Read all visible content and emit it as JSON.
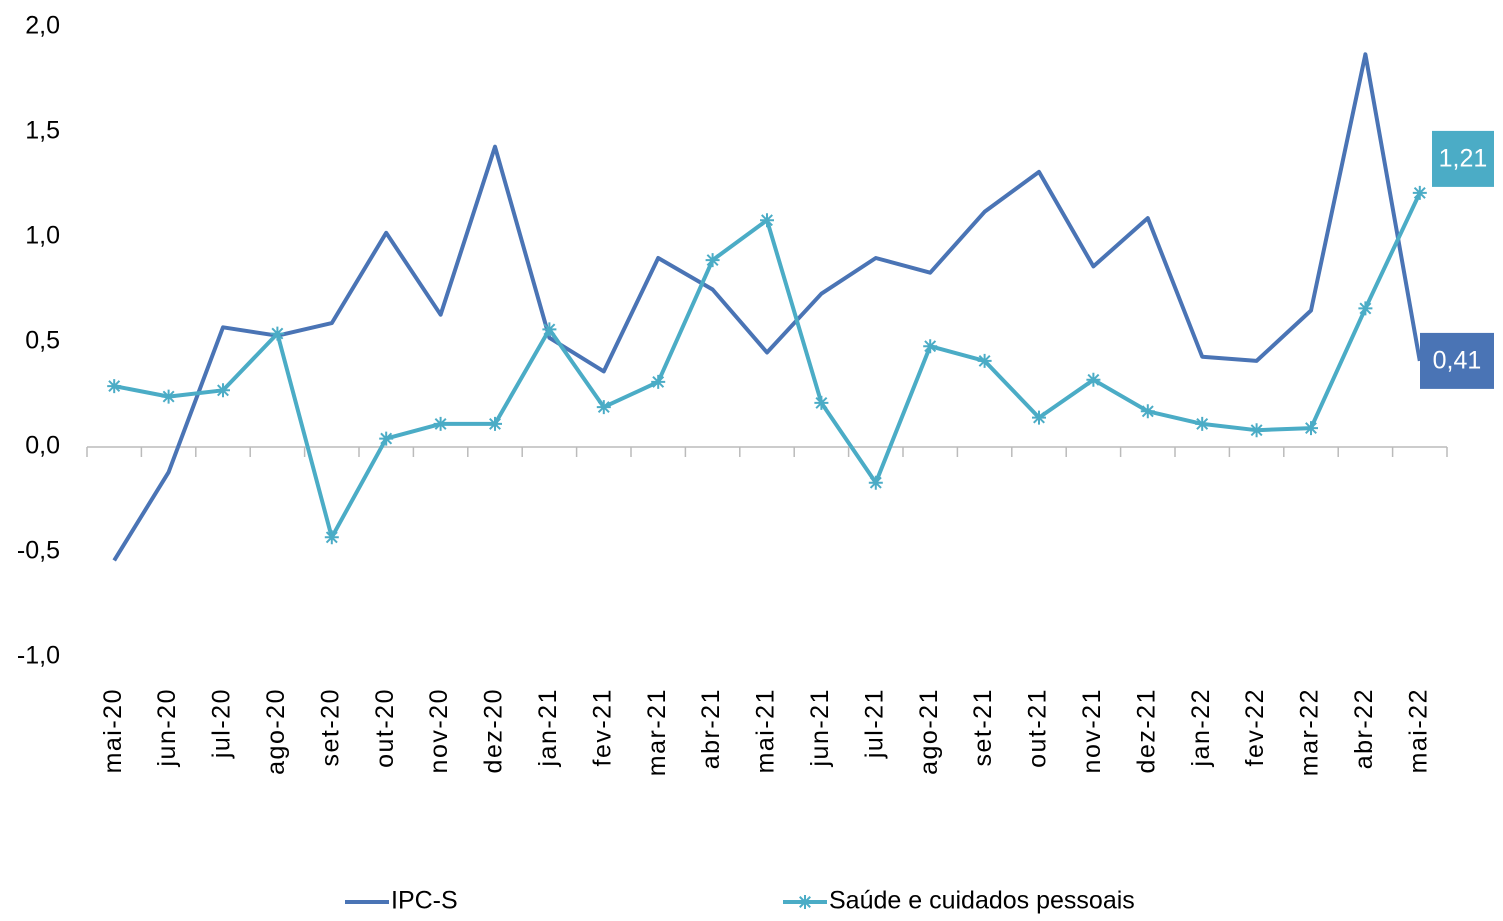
{
  "chart_data": {
    "type": "line",
    "categories": [
      "mai-20",
      "jun-20",
      "jul-20",
      "ago-20",
      "set-20",
      "out-20",
      "nov-20",
      "dez-20",
      "jan-21",
      "fev-21",
      "mar-21",
      "abr-21",
      "mai-21",
      "jun-21",
      "jul-21",
      "ago-21",
      "set-21",
      "out-21",
      "nov-21",
      "dez-21",
      "jan-22",
      "fev-22",
      "mar-22",
      "abr-22",
      "mai-22"
    ],
    "series": [
      {
        "name": "IPC-S",
        "color": "#4a74b5",
        "marker": "none",
        "values": [
          -0.54,
          -0.12,
          0.57,
          0.53,
          0.59,
          1.02,
          0.63,
          1.43,
          0.52,
          0.36,
          0.9,
          0.75,
          0.45,
          0.73,
          0.9,
          0.83,
          1.12,
          1.31,
          0.86,
          1.09,
          0.43,
          0.41,
          0.65,
          1.87,
          0.41
        ],
        "value_labels": [
          null,
          null,
          null,
          null,
          null,
          null,
          null,
          null,
          null,
          null,
          null,
          null,
          null,
          null,
          null,
          null,
          null,
          null,
          null,
          null,
          null,
          null,
          null,
          null,
          "0,41"
        ]
      },
      {
        "name": "Saúde e cuidados pessoais",
        "color": "#4bacc6",
        "marker": "star",
        "values": [
          0.29,
          0.24,
          0.27,
          0.54,
          -0.43,
          0.04,
          0.11,
          0.11,
          0.56,
          0.19,
          0.31,
          0.89,
          1.08,
          0.21,
          -0.17,
          0.48,
          0.41,
          0.14,
          0.32,
          0.17,
          0.11,
          0.08,
          0.09,
          0.66,
          1.21
        ],
        "value_labels": [
          null,
          null,
          null,
          null,
          null,
          null,
          null,
          null,
          null,
          null,
          null,
          null,
          null,
          null,
          null,
          null,
          null,
          null,
          null,
          null,
          null,
          null,
          null,
          null,
          "1,21"
        ]
      }
    ],
    "ylim": [
      -1,
      2
    ],
    "yticks": [
      {
        "value": -1,
        "label": "-1,0"
      },
      {
        "value": -0.5,
        "label": "-0,5"
      },
      {
        "value": 0,
        "label": "0,0"
      },
      {
        "value": 0.5,
        "label": "0,5"
      },
      {
        "value": 1,
        "label": "1,0"
      },
      {
        "value": 1.5,
        "label": "1,5"
      },
      {
        "value": 2,
        "label": "2,0"
      }
    ],
    "grid": false,
    "legend": "bottom"
  }
}
